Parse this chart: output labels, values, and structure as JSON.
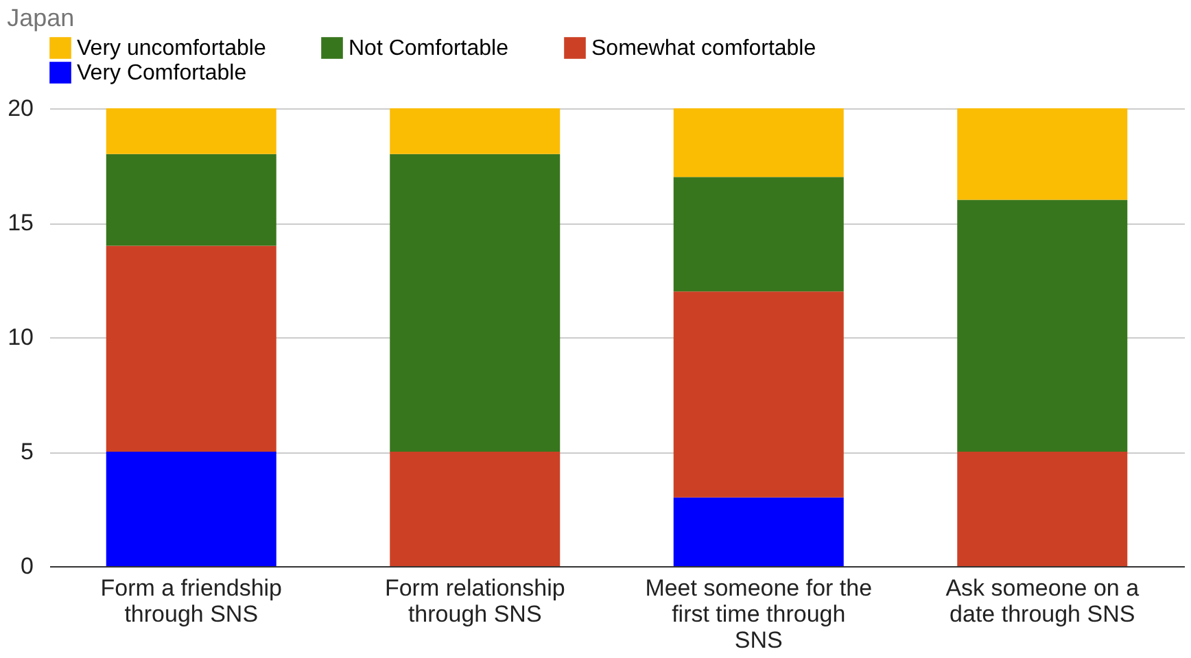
{
  "chart_data": {
    "type": "bar",
    "title": "Japan",
    "stacked": true,
    "categories": [
      "Form a friendship through SNS",
      "Form relationship through SNS",
      "Meet someone for the first time through SNS",
      "Ask someone on a date through SNS"
    ],
    "series": [
      {
        "name": "Very Comfortable",
        "color": "#0000ff",
        "values": [
          5,
          0,
          3,
          0
        ]
      },
      {
        "name": "Somewhat comfortable",
        "color": "#cc4125",
        "values": [
          9,
          5,
          9,
          5
        ]
      },
      {
        "name": "Not Comfortable",
        "color": "#38761d",
        "values": [
          4,
          13,
          5,
          11
        ]
      },
      {
        "name": "Very uncomfortable",
        "color": "#fbbc04",
        "values": [
          2,
          2,
          3,
          4
        ]
      }
    ],
    "ylim": [
      0,
      20
    ],
    "yticks": [
      0,
      5,
      10,
      15,
      20
    ],
    "grid": "y",
    "legend": "top"
  }
}
